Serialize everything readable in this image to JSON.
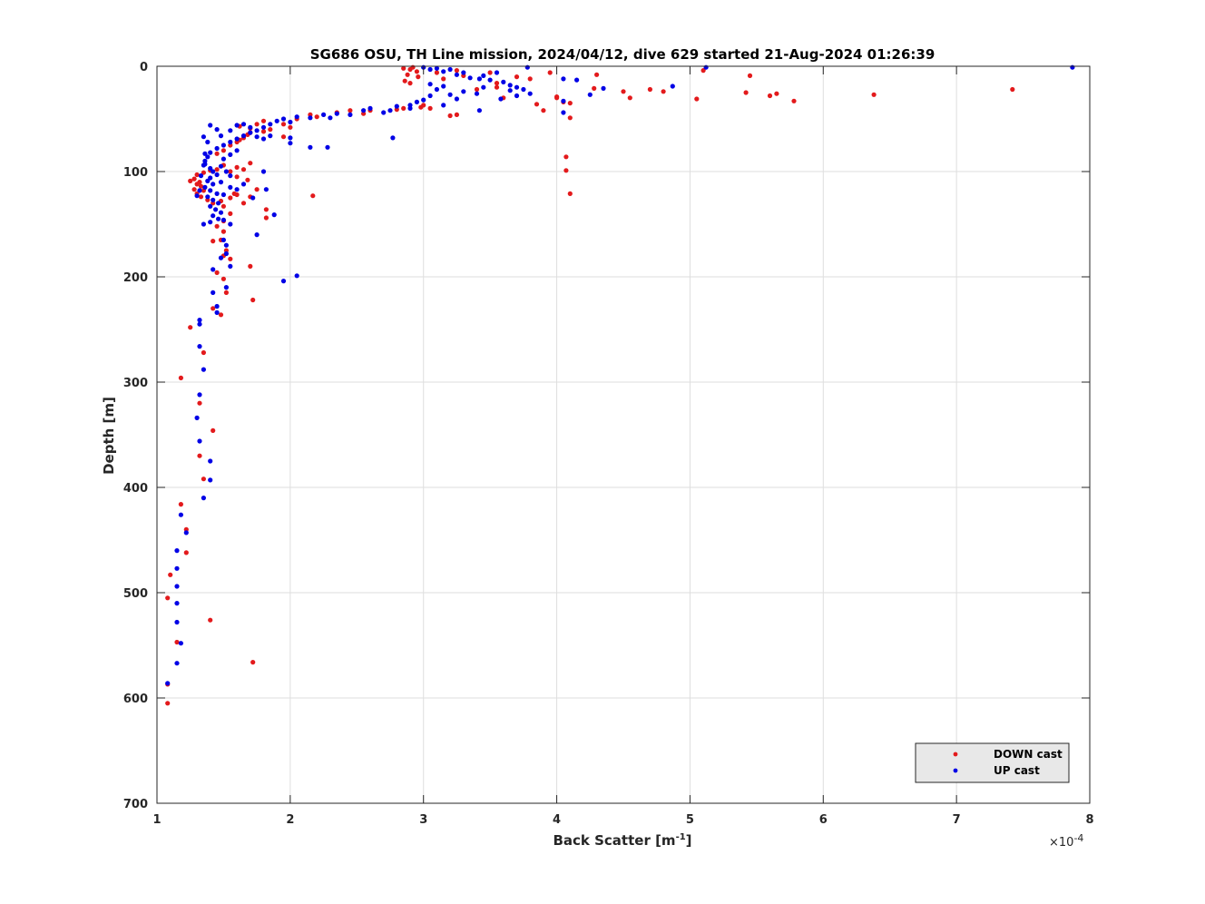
{
  "chart_data": {
    "type": "scatter",
    "title": "SG686 OSU, TH Line mission, 2024/04/12, dive 629 started 21-Aug-2024 01:26:39",
    "xlabel": "Back Scatter [m",
    "xlabel_superscript": "-1",
    "xlabel_suffix": "]",
    "ylabel": "Depth [m]",
    "x_multiplier": "×10",
    "x_multiplier_exponent": "-4",
    "xlim": [
      1,
      8
    ],
    "ylim": [
      0,
      700
    ],
    "y_reversed": true,
    "x_ticks": [
      "1",
      "2",
      "3",
      "4",
      "5",
      "6",
      "7",
      "8"
    ],
    "y_ticks": [
      "0",
      "100",
      "200",
      "300",
      "400",
      "500",
      "600",
      "700"
    ],
    "grid": true,
    "legend_position": "bottom-right",
    "series": [
      {
        "name": "DOWN cast",
        "color": "#e31a1c",
        "points": [
          [
            2.85,
            2
          ],
          [
            2.9,
            3
          ],
          [
            2.95,
            5
          ],
          [
            2.88,
            8
          ],
          [
            2.92,
            1
          ],
          [
            2.86,
            14
          ],
          [
            2.9,
            16
          ],
          [
            2.96,
            10
          ],
          [
            3.1,
            6
          ],
          [
            3.15,
            12
          ],
          [
            3.25,
            4
          ],
          [
            3.3,
            9
          ],
          [
            3.5,
            6
          ],
          [
            3.7,
            10
          ],
          [
            3.8,
            12
          ],
          [
            3.95,
            6
          ],
          [
            4.3,
            8
          ],
          [
            5.1,
            4
          ],
          [
            5.45,
            9
          ],
          [
            4.7,
            22
          ],
          [
            4.8,
            24
          ],
          [
            4.5,
            24
          ],
          [
            4.55,
            30
          ],
          [
            4.28,
            21
          ],
          [
            5.05,
            31
          ],
          [
            5.42,
            25
          ],
          [
            5.6,
            28
          ],
          [
            5.65,
            26
          ],
          [
            5.78,
            33
          ],
          [
            6.38,
            27
          ],
          [
            7.42,
            22
          ],
          [
            3.85,
            36
          ],
          [
            3.9,
            42
          ],
          [
            4.05,
            34
          ],
          [
            4.1,
            35
          ],
          [
            4.1,
            49
          ],
          [
            4.0,
            29
          ],
          [
            3.6,
            30
          ],
          [
            3.55,
            16
          ],
          [
            3.2,
            47
          ],
          [
            3.25,
            46
          ],
          [
            3.05,
            40
          ],
          [
            3.0,
            37
          ],
          [
            2.98,
            39
          ],
          [
            2.85,
            40
          ],
          [
            2.8,
            41
          ],
          [
            2.6,
            42
          ],
          [
            2.55,
            45
          ],
          [
            2.45,
            42
          ],
          [
            2.35,
            44
          ],
          [
            2.2,
            48
          ],
          [
            2.15,
            46
          ],
          [
            2.05,
            50
          ],
          [
            2.0,
            58
          ],
          [
            1.95,
            55
          ],
          [
            1.85,
            60
          ],
          [
            1.8,
            52
          ],
          [
            1.8,
            62
          ],
          [
            1.75,
            55
          ],
          [
            1.7,
            59
          ],
          [
            1.68,
            65
          ],
          [
            1.65,
            68
          ],
          [
            1.62,
            70
          ],
          [
            1.6,
            72
          ],
          [
            1.55,
            75
          ],
          [
            1.5,
            80
          ],
          [
            1.45,
            83
          ],
          [
            1.62,
            57
          ],
          [
            1.7,
            63
          ],
          [
            1.95,
            67
          ],
          [
            1.6,
            96
          ],
          [
            1.65,
            98
          ],
          [
            1.7,
            92
          ],
          [
            1.55,
            100
          ],
          [
            1.5,
            94
          ],
          [
            1.45,
            98
          ],
          [
            1.4,
            99
          ],
          [
            1.35,
            101
          ],
          [
            1.3,
            103
          ],
          [
            1.28,
            107
          ],
          [
            1.32,
            110
          ],
          [
            1.25,
            109
          ],
          [
            1.3,
            112
          ],
          [
            1.33,
            114
          ],
          [
            1.28,
            117
          ],
          [
            1.35,
            118
          ],
          [
            1.3,
            121
          ],
          [
            1.33,
            124
          ],
          [
            1.38,
            127
          ],
          [
            1.42,
            130
          ],
          [
            1.48,
            128
          ],
          [
            1.55,
            125
          ],
          [
            1.6,
            122
          ],
          [
            1.65,
            130
          ],
          [
            1.7,
            124
          ],
          [
            1.75,
            117
          ],
          [
            1.82,
            136
          ],
          [
            1.82,
            144
          ],
          [
            1.55,
            140
          ],
          [
            1.5,
            147
          ],
          [
            1.45,
            152
          ],
          [
            1.5,
            157
          ],
          [
            1.48,
            165
          ],
          [
            1.52,
            175
          ],
          [
            1.5,
            180
          ],
          [
            1.55,
            183
          ],
          [
            1.7,
            190
          ],
          [
            1.6,
            105
          ],
          [
            1.68,
            108
          ],
          [
            1.58,
            121
          ],
          [
            1.5,
            133
          ],
          [
            2.17,
            123
          ],
          [
            1.42,
            166
          ],
          [
            1.45,
            196
          ],
          [
            1.5,
            202
          ],
          [
            1.52,
            215
          ],
          [
            1.72,
            222
          ],
          [
            1.42,
            230
          ],
          [
            1.48,
            236
          ],
          [
            1.25,
            248
          ],
          [
            1.35,
            272
          ],
          [
            1.18,
            296
          ],
          [
            1.32,
            320
          ],
          [
            1.42,
            346
          ],
          [
            1.32,
            370
          ],
          [
            1.35,
            392
          ],
          [
            1.18,
            416
          ],
          [
            1.22,
            440
          ],
          [
            1.22,
            462
          ],
          [
            1.1,
            483
          ],
          [
            1.08,
            505
          ],
          [
            1.4,
            526
          ],
          [
            1.15,
            547
          ],
          [
            1.72,
            566
          ],
          [
            1.08,
            587
          ],
          [
            1.08,
            605
          ],
          [
            4.07,
            86
          ],
          [
            4.07,
            99
          ],
          [
            4.1,
            121
          ],
          [
            4.0,
            30
          ],
          [
            3.55,
            20
          ],
          [
            3.4,
            22
          ]
        ]
      },
      {
        "name": "UP cast",
        "color": "#0000e6",
        "points": [
          [
            7.87,
            1
          ],
          [
            5.12,
            1
          ],
          [
            3.78,
            1
          ],
          [
            3.0,
            1
          ],
          [
            3.05,
            3
          ],
          [
            3.1,
            2
          ],
          [
            3.15,
            5
          ],
          [
            3.2,
            3
          ],
          [
            3.25,
            8
          ],
          [
            3.3,
            6
          ],
          [
            3.35,
            11
          ],
          [
            3.42,
            12
          ],
          [
            3.45,
            9
          ],
          [
            3.5,
            13
          ],
          [
            3.55,
            6
          ],
          [
            3.6,
            15
          ],
          [
            3.65,
            18
          ],
          [
            3.7,
            20
          ],
          [
            3.75,
            22
          ],
          [
            3.65,
            23
          ],
          [
            3.7,
            28
          ],
          [
            3.8,
            26
          ],
          [
            3.4,
            26
          ],
          [
            3.45,
            20
          ],
          [
            3.3,
            24
          ],
          [
            3.2,
            27
          ],
          [
            3.15,
            19
          ],
          [
            3.05,
            17
          ],
          [
            3.1,
            22
          ],
          [
            3.05,
            28
          ],
          [
            3.0,
            32
          ],
          [
            2.95,
            34
          ],
          [
            2.9,
            37
          ],
          [
            3.15,
            37
          ],
          [
            3.25,
            31
          ],
          [
            3.42,
            42
          ],
          [
            3.58,
            31
          ],
          [
            4.05,
            12
          ],
          [
            4.15,
            13
          ],
          [
            4.05,
            33
          ],
          [
            4.25,
            27
          ],
          [
            4.35,
            21
          ],
          [
            4.87,
            19
          ],
          [
            4.05,
            44
          ],
          [
            2.9,
            40
          ],
          [
            2.8,
            38
          ],
          [
            2.75,
            42
          ],
          [
            2.7,
            44
          ],
          [
            2.6,
            40
          ],
          [
            2.55,
            42
          ],
          [
            2.45,
            46
          ],
          [
            2.35,
            45
          ],
          [
            2.3,
            49
          ],
          [
            2.25,
            46
          ],
          [
            2.15,
            49
          ],
          [
            2.05,
            48
          ],
          [
            2.0,
            53
          ],
          [
            1.95,
            50
          ],
          [
            1.9,
            52
          ],
          [
            1.85,
            55
          ],
          [
            1.8,
            58
          ],
          [
            1.75,
            61
          ],
          [
            1.7,
            63
          ],
          [
            1.65,
            66
          ],
          [
            1.6,
            69
          ],
          [
            1.55,
            72
          ],
          [
            1.5,
            75
          ],
          [
            1.45,
            78
          ],
          [
            1.4,
            82
          ],
          [
            1.38,
            86
          ],
          [
            1.36,
            90
          ],
          [
            1.35,
            94
          ],
          [
            1.4,
            97
          ],
          [
            1.42,
            100
          ],
          [
            1.45,
            103
          ],
          [
            1.4,
            106
          ],
          [
            1.38,
            109
          ],
          [
            1.42,
            112
          ],
          [
            1.36,
            115
          ],
          [
            1.4,
            118
          ],
          [
            1.45,
            121
          ],
          [
            1.38,
            124
          ],
          [
            1.42,
            127
          ],
          [
            1.46,
            130
          ],
          [
            1.4,
            133
          ],
          [
            1.44,
            136
          ],
          [
            1.48,
            139
          ],
          [
            1.42,
            142
          ],
          [
            1.46,
            145
          ],
          [
            1.4,
            148
          ],
          [
            1.35,
            150
          ],
          [
            1.3,
            123
          ],
          [
            1.32,
            118
          ],
          [
            1.33,
            104
          ],
          [
            1.36,
            93
          ],
          [
            1.36,
            83
          ],
          [
            1.38,
            72
          ],
          [
            1.35,
            67
          ],
          [
            1.4,
            56
          ],
          [
            1.45,
            60
          ],
          [
            1.48,
            66
          ],
          [
            1.55,
            61
          ],
          [
            1.6,
            56
          ],
          [
            1.65,
            55
          ],
          [
            1.7,
            58
          ],
          [
            1.75,
            67
          ],
          [
            1.8,
            69
          ],
          [
            1.85,
            66
          ],
          [
            2.0,
            68
          ],
          [
            2.0,
            73
          ],
          [
            2.15,
            77
          ],
          [
            2.28,
            77
          ],
          [
            2.77,
            68
          ],
          [
            1.48,
            95
          ],
          [
            1.52,
            100
          ],
          [
            1.55,
            104
          ],
          [
            1.6,
            117
          ],
          [
            1.65,
            112
          ],
          [
            1.72,
            125
          ],
          [
            1.8,
            100
          ],
          [
            1.82,
            117
          ],
          [
            1.88,
            141
          ],
          [
            1.5,
            146
          ],
          [
            1.55,
            150
          ],
          [
            1.75,
            160
          ],
          [
            1.5,
            165
          ],
          [
            1.52,
            170
          ],
          [
            1.52,
            178
          ],
          [
            1.48,
            182
          ],
          [
            1.55,
            190
          ],
          [
            1.42,
            193
          ],
          [
            2.05,
            199
          ],
          [
            1.95,
            204
          ],
          [
            1.52,
            210
          ],
          [
            1.42,
            215
          ],
          [
            1.45,
            228
          ],
          [
            1.45,
            234
          ],
          [
            1.32,
            241
          ],
          [
            1.32,
            245
          ],
          [
            1.32,
            266
          ],
          [
            1.35,
            288
          ],
          [
            1.32,
            312
          ],
          [
            1.3,
            334
          ],
          [
            1.32,
            356
          ],
          [
            1.4,
            375
          ],
          [
            1.4,
            393
          ],
          [
            1.35,
            410
          ],
          [
            1.18,
            426
          ],
          [
            1.22,
            443
          ],
          [
            1.15,
            460
          ],
          [
            1.15,
            477
          ],
          [
            1.15,
            494
          ],
          [
            1.15,
            510
          ],
          [
            1.15,
            528
          ],
          [
            1.18,
            548
          ],
          [
            1.15,
            567
          ],
          [
            1.08,
            586
          ],
          [
            1.55,
            115
          ],
          [
            1.5,
            122
          ],
          [
            1.48,
            110
          ],
          [
            1.5,
            88
          ],
          [
            1.55,
            84
          ],
          [
            1.6,
            80
          ]
        ]
      }
    ]
  }
}
